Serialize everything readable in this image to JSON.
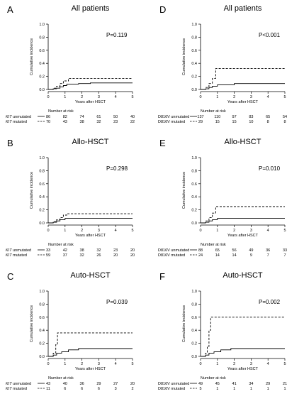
{
  "figure": {
    "common": {
      "ylabel": "Cumulative incidence",
      "xlabel": "Years after HSCT",
      "risk_heading": "Number at risk",
      "yticks": [
        "0.0",
        "0.2",
        "0.4",
        "0.6",
        "0.8",
        "1.0"
      ],
      "xticks": [
        "0",
        "1",
        "2",
        "3",
        "4",
        "5"
      ]
    }
  },
  "chart_data": [
    {
      "type": "line",
      "panel_letter": "A",
      "title": "All patients",
      "pvalue": "P=0.119",
      "xlabel": "Years after HSCT",
      "ylabel": "Cumulative incidence",
      "xlim": [
        0,
        5
      ],
      "ylim": [
        0,
        1
      ],
      "series": [
        {
          "label": "KIT unmutated",
          "style": "solid",
          "x": [
            0,
            0.3,
            0.5,
            0.7,
            0.9,
            1.1,
            1.8,
            2.5,
            5
          ],
          "y": [
            0,
            0.01,
            0.02,
            0.04,
            0.06,
            0.08,
            0.09,
            0.1,
            0.1
          ]
        },
        {
          "label": "KIT mutated",
          "style": "dashed",
          "x": [
            0,
            0.3,
            0.5,
            0.7,
            0.9,
            1.2,
            5
          ],
          "y": [
            0,
            0.02,
            0.05,
            0.09,
            0.13,
            0.17,
            0.17
          ]
        }
      ],
      "risk_table": [
        {
          "label": "KIT unmutated",
          "style": "solid",
          "values": [
            "86",
            "82",
            "74",
            "61",
            "50",
            "40"
          ]
        },
        {
          "label": "KIT mutated",
          "style": "dashed",
          "values": [
            "70",
            "43",
            "38",
            "32",
            "23",
            "22"
          ]
        }
      ]
    },
    {
      "type": "line",
      "panel_letter": "D",
      "title": "All patients",
      "pvalue": "P<0.001",
      "xlabel": "Years after HSCT",
      "ylabel": "Cumulative incidence",
      "xlim": [
        0,
        5
      ],
      "ylim": [
        0,
        1
      ],
      "series": [
        {
          "label": "D816V unmutated",
          "style": "solid",
          "x": [
            0,
            0.3,
            0.5,
            0.7,
            1.0,
            2.0,
            5
          ],
          "y": [
            0,
            0.01,
            0.03,
            0.05,
            0.07,
            0.09,
            0.09
          ]
        },
        {
          "label": "D816V mutated",
          "style": "dashed",
          "x": [
            0,
            0.3,
            0.5,
            0.7,
            0.9,
            5
          ],
          "y": [
            0,
            0.03,
            0.09,
            0.17,
            0.32,
            0.32
          ]
        }
      ],
      "risk_table": [
        {
          "label": "D816V unmutated",
          "style": "solid",
          "values": [
            "137",
            "110",
            "97",
            "83",
            "65",
            "54"
          ]
        },
        {
          "label": "D816V mutated",
          "style": "dashed",
          "values": [
            "29",
            "15",
            "15",
            "10",
            "8",
            "8"
          ]
        }
      ]
    },
    {
      "type": "line",
      "panel_letter": "B",
      "title": "Allo-HSCT",
      "pvalue": "P=0.298",
      "xlabel": "Years after HSCT",
      "ylabel": "Cumulative incidence",
      "xlim": [
        0,
        5
      ],
      "ylim": [
        0,
        1
      ],
      "series": [
        {
          "label": "KIT unmutated",
          "style": "solid",
          "x": [
            0,
            0.3,
            0.5,
            0.7,
            1.0,
            5
          ],
          "y": [
            0,
            0.01,
            0.03,
            0.05,
            0.07,
            0.07
          ]
        },
        {
          "label": "KIT mutated",
          "style": "dashed",
          "x": [
            0,
            0.3,
            0.5,
            0.7,
            0.9,
            1.1,
            5
          ],
          "y": [
            0,
            0.02,
            0.05,
            0.08,
            0.12,
            0.14,
            0.14
          ]
        }
      ],
      "risk_table": [
        {
          "label": "KIT unmutated",
          "style": "solid",
          "values": [
            "33",
            "42",
            "38",
            "32",
            "23",
            "20"
          ]
        },
        {
          "label": "KIT mutated",
          "style": "dashed",
          "values": [
            "59",
            "37",
            "32",
            "26",
            "20",
            "20"
          ]
        }
      ]
    },
    {
      "type": "line",
      "panel_letter": "E",
      "title": "Allo-HSCT",
      "pvalue": "P=0.010",
      "xlabel": "Years after HSCT",
      "ylabel": "Cumulative incidence",
      "xlim": [
        0,
        5
      ],
      "ylim": [
        0,
        1
      ],
      "series": [
        {
          "label": "D816V unmutated",
          "style": "solid",
          "x": [
            0,
            0.3,
            0.5,
            0.7,
            1.0,
            5
          ],
          "y": [
            0,
            0.01,
            0.03,
            0.05,
            0.07,
            0.07
          ]
        },
        {
          "label": "D816V mutated",
          "style": "dashed",
          "x": [
            0,
            0.3,
            0.5,
            0.7,
            0.9,
            5
          ],
          "y": [
            0,
            0.03,
            0.08,
            0.15,
            0.25,
            0.25
          ]
        }
      ],
      "risk_table": [
        {
          "label": "D816V unmutated",
          "style": "solid",
          "values": [
            "88",
            "65",
            "56",
            "49",
            "36",
            "33"
          ]
        },
        {
          "label": "D816V mutated",
          "style": "dashed",
          "values": [
            "24",
            "14",
            "14",
            "9",
            "7",
            "7"
          ]
        }
      ]
    },
    {
      "type": "line",
      "panel_letter": "C",
      "title": "Auto-HSCT",
      "pvalue": "P=0.039",
      "xlabel": "Years after HSCT",
      "ylabel": "Cumulative incidence",
      "xlim": [
        0,
        5
      ],
      "ylim": [
        0,
        1
      ],
      "series": [
        {
          "label": "KIT unmutated",
          "style": "solid",
          "x": [
            0,
            0.3,
            0.5,
            0.8,
            1.2,
            1.8,
            5
          ],
          "y": [
            0,
            0.02,
            0.05,
            0.07,
            0.1,
            0.12,
            0.12
          ]
        },
        {
          "label": "KIT mutated",
          "style": "dashed",
          "x": [
            0,
            0.3,
            0.45,
            0.55,
            5
          ],
          "y": [
            0,
            0.05,
            0.18,
            0.36,
            0.36
          ]
        }
      ],
      "risk_table": [
        {
          "label": "KIT unmutated",
          "style": "solid",
          "values": [
            "43",
            "40",
            "36",
            "29",
            "27",
            "20"
          ]
        },
        {
          "label": "KIT mutated",
          "style": "dashed",
          "values": [
            "11",
            "6",
            "6",
            "6",
            "3",
            "2"
          ]
        }
      ]
    },
    {
      "type": "line",
      "panel_letter": "F",
      "title": "Auto-HSCT",
      "pvalue": "P=0.002",
      "xlabel": "Years after HSCT",
      "ylabel": "Cumulative incidence",
      "xlim": [
        0,
        5
      ],
      "ylim": [
        0,
        1
      ],
      "series": [
        {
          "label": "D816V unmutated",
          "style": "solid",
          "x": [
            0,
            0.3,
            0.5,
            0.8,
            1.2,
            1.8,
            5
          ],
          "y": [
            0,
            0.02,
            0.05,
            0.07,
            0.1,
            0.12,
            0.12
          ]
        },
        {
          "label": "D816V mutated",
          "style": "dashed",
          "x": [
            0,
            0.3,
            0.4,
            0.5,
            0.6,
            5
          ],
          "y": [
            0,
            0.05,
            0.15,
            0.4,
            0.6,
            0.6
          ]
        }
      ],
      "risk_table": [
        {
          "label": "D816V unmutated",
          "style": "solid",
          "values": [
            "49",
            "45",
            "41",
            "34",
            "29",
            "21"
          ]
        },
        {
          "label": "D816V mutated",
          "style": "dashed",
          "values": [
            "5",
            "1",
            "1",
            "1",
            "1",
            "1"
          ]
        }
      ]
    }
  ]
}
